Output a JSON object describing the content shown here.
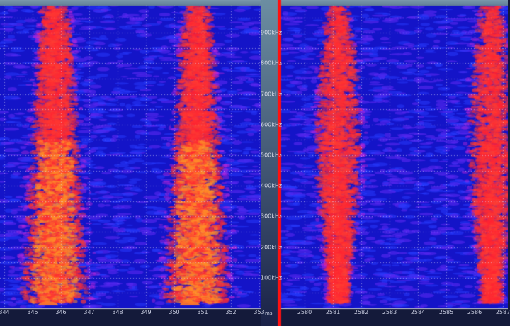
{
  "chart_data": {
    "type": "heatmap",
    "panels": [
      {
        "x_ticks": [
          "344",
          "345",
          "346",
          "347",
          "348",
          "349",
          "350",
          "351",
          "352",
          "353"
        ],
        "x_unit": "ms",
        "xlim": [
          344,
          353
        ],
        "bursts": [
          {
            "center": 345.8,
            "intensity": 1.0
          },
          {
            "center": 350.8,
            "intensity": 1.0
          }
        ]
      },
      {
        "x_ticks": [
          "2580",
          "2581",
          "2582",
          "2583",
          "2584",
          "2585",
          "2586",
          "2587"
        ],
        "xlim": [
          2579.2,
          2587.2
        ],
        "bursts": [
          {
            "center": 2581.2,
            "intensity": 0.75
          },
          {
            "center": 2586.6,
            "intensity": 0.7
          }
        ]
      }
    ],
    "y_ticks": [
      "100kHz",
      "200kHz",
      "300kHz",
      "400kHz",
      "500kHz",
      "600kHz",
      "700kHz",
      "800kHz",
      "900kHz"
    ],
    "ylim": [
      0,
      1000
    ],
    "y_unit": "kHz",
    "grid": true,
    "colors": {
      "background": "#1a1ad8",
      "low": "#5a20e0",
      "mid": "#ff2030",
      "high": "#ff8a20",
      "divider": "#ff1010"
    }
  }
}
